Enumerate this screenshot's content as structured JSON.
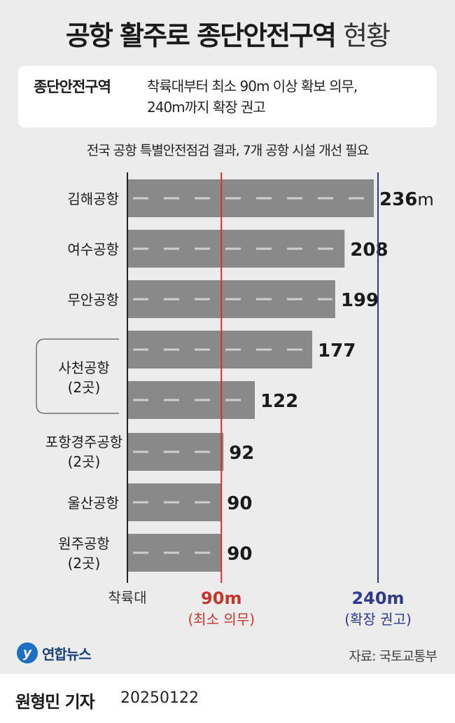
{
  "title_bold": "공항 활주로 종단안전구역",
  "title_light": "현황",
  "info": {
    "label": "종단안전구역",
    "line1": "착륙대부터 최소 90m 이상 확보 의무,",
    "line2": "240m까지 확장 권고"
  },
  "subtitle": "전국 공항 특별안전점검 결과, 7개 공항 시설 개선 필요",
  "chart_data": {
    "type": "bar",
    "orientation": "horizontal",
    "unit": "m",
    "xlim": [
      0,
      240
    ],
    "bars": [
      {
        "label": "김해공항",
        "value": 236,
        "value_label": "236",
        "unit_label": "m"
      },
      {
        "label": "여수공항",
        "value": 208,
        "value_label": "208"
      },
      {
        "label": "무안공항",
        "value": 199,
        "value_label": "199"
      },
      {
        "label": "사천공항",
        "value": 177,
        "value_label": "177"
      },
      {
        "label": "",
        "value": 122,
        "value_label": "122"
      },
      {
        "label": "포항경주공항",
        "value": 92,
        "value_label": "92"
      },
      {
        "label": "울산공항",
        "value": 90,
        "value_label": "90"
      },
      {
        "label": "원주공항",
        "value": 90,
        "value_label": "90"
      }
    ],
    "group_labels": [
      {
        "name": "사천공항",
        "sub": "(2곳)"
      },
      {
        "name": "포항경주공항",
        "sub": "(2곳)"
      },
      {
        "name": "원주공항",
        "sub": "(2곳)"
      }
    ],
    "reference_lines": [
      {
        "value": 90,
        "label": "90m",
        "sublabel": "(최소 의무)",
        "color": "#c8352b"
      },
      {
        "value": 240,
        "label": "240m",
        "sublabel": "(확장 권고)",
        "color": "#2e3b8c"
      }
    ],
    "origin_label": "착륙대",
    "bar_color": "#898989",
    "dash_color": "#cfcfcf"
  },
  "logo": {
    "text": "연합뉴스",
    "mark": "y"
  },
  "source": "자료: 국토교통부",
  "footer": {
    "name": "원형민 기자",
    "date": "20250122"
  }
}
